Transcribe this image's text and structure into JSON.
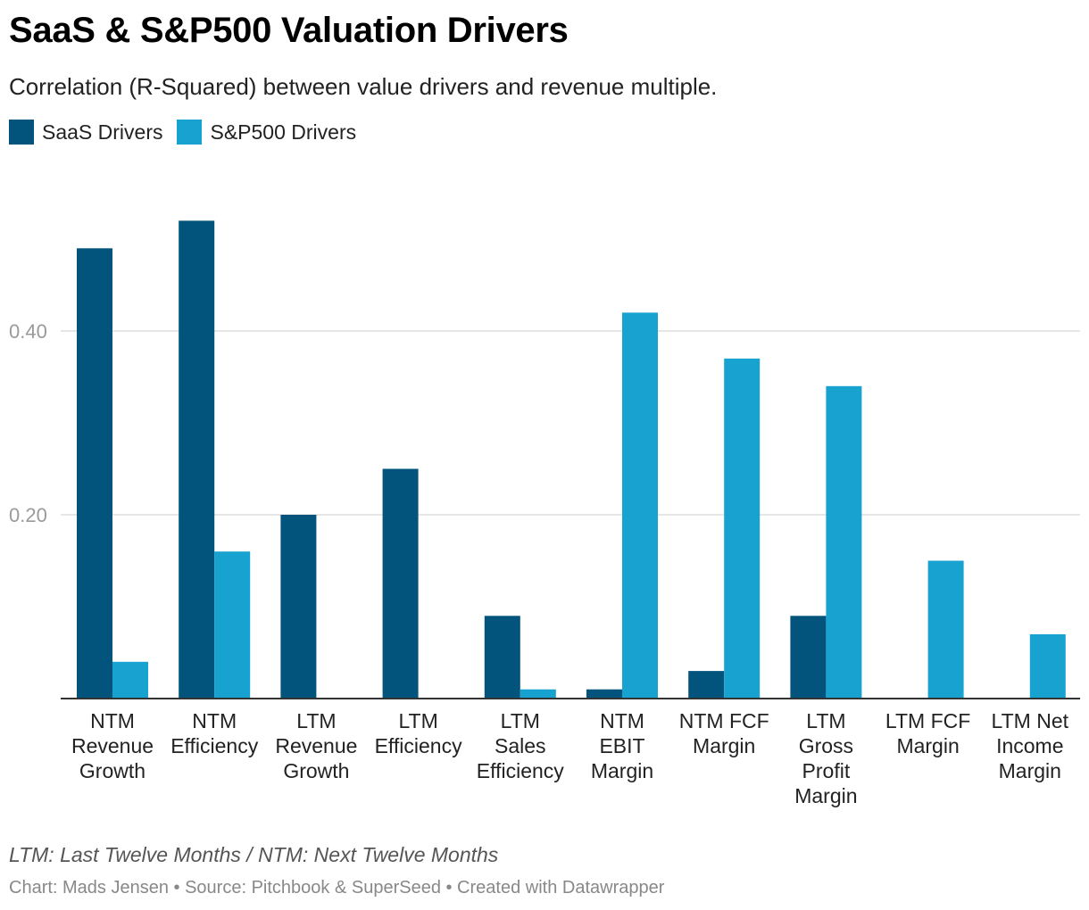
{
  "title": "SaaS & S&P500 Valuation Drivers",
  "subtitle": "Correlation (R-Squared) between value drivers and revenue multiple.",
  "note": "LTM: Last Twelve Months / NTM: Next Twelve Months",
  "footer": "Chart: Mads Jensen • Source: Pitchbook & SuperSeed • Created with Datawrapper",
  "colors": {
    "saas": "#03547d",
    "sp500": "#17a2cf",
    "grid": "#dddddd",
    "axis": "#333333",
    "tick": "#9a9a9a"
  },
  "legend": [
    {
      "label": "SaaS Drivers",
      "color": "#03547d"
    },
    {
      "label": "S&P500 Drivers",
      "color": "#17a2cf"
    }
  ],
  "chart_data": {
    "type": "bar",
    "categories": [
      [
        "NTM",
        "Revenue",
        "Growth"
      ],
      [
        "NTM",
        "Efficiency"
      ],
      [
        "LTM",
        "Revenue",
        "Growth"
      ],
      [
        "LTM",
        "Efficiency"
      ],
      [
        "LTM",
        "Sales",
        "Efficiency"
      ],
      [
        "NTM",
        "EBIT",
        "Margin"
      ],
      [
        "NTM FCF",
        "Margin"
      ],
      [
        "LTM",
        "Gross",
        "Profit",
        "Margin"
      ],
      [
        "LTM FCF",
        "Margin"
      ],
      [
        "LTM Net",
        "Income",
        "Margin"
      ]
    ],
    "series": [
      {
        "name": "SaaS Drivers",
        "values": [
          0.49,
          0.52,
          0.2,
          0.25,
          0.09,
          0.01,
          0.03,
          0.09,
          0.0,
          0.0
        ]
      },
      {
        "name": "S&P500 Drivers",
        "values": [
          0.04,
          0.16,
          0.0,
          0.0,
          0.01,
          0.42,
          0.37,
          0.34,
          0.15,
          0.07
        ]
      }
    ],
    "yticks": [
      0.2,
      0.4
    ],
    "ytick_labels": [
      "0.20",
      "0.40"
    ],
    "ylim": [
      0,
      0.55
    ],
    "grid": true,
    "legend_position": "top-left"
  }
}
